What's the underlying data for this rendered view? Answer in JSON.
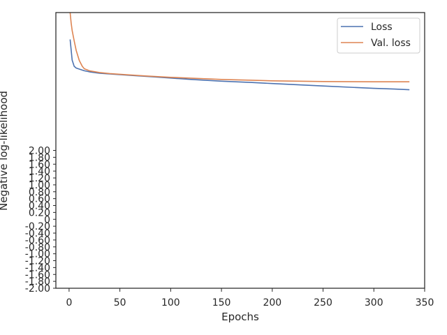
{
  "chart_data": {
    "type": "line",
    "title": "",
    "xlabel": "Epochs",
    "ylabel": "Negative log-likelihood",
    "xlim": [
      -13,
      350
    ],
    "xticks": [
      "0",
      "50",
      "100",
      "150",
      "200",
      "250",
      "300",
      "350"
    ],
    "ylim": [
      -2.0,
      6.0
    ],
    "yticks_visible": [
      "-2.00",
      "-1.80",
      "-1.60",
      "-1.40",
      "-1.20",
      "-1.00",
      "-0.80",
      "-0.60",
      "-0.40",
      "-0.20",
      "0",
      "0.20",
      "0.40",
      "0.60",
      "0.80",
      "1.00",
      "1.20",
      "1.40",
      "1.60",
      "1.80",
      "2.00"
    ],
    "grid": false,
    "legend_position": "top-right",
    "series": [
      {
        "name": "Loss",
        "color": "#4c72b0",
        "x": [
          1,
          3,
          5,
          7,
          10,
          15,
          20,
          30,
          40,
          50,
          60,
          80,
          100,
          120,
          150,
          180,
          200,
          250,
          300,
          320,
          335
        ],
        "y": [
          5.22,
          4.62,
          4.44,
          4.39,
          4.36,
          4.31,
          4.28,
          4.24,
          4.22,
          4.2,
          4.18,
          4.14,
          4.1,
          4.06,
          4.01,
          3.97,
          3.94,
          3.87,
          3.8,
          3.78,
          3.76
        ]
      },
      {
        "name": "Val. loss",
        "color": "#dd8452",
        "x": [
          1,
          2,
          3,
          5,
          7,
          10,
          13,
          15,
          20,
          30,
          40,
          50,
          75,
          100,
          150,
          200,
          250,
          300,
          335
        ],
        "y": [
          6.0,
          5.71,
          5.48,
          5.18,
          4.9,
          4.61,
          4.44,
          4.37,
          4.31,
          4.26,
          4.23,
          4.21,
          4.16,
          4.12,
          4.06,
          4.02,
          4.0,
          3.99,
          3.99
        ]
      }
    ]
  }
}
